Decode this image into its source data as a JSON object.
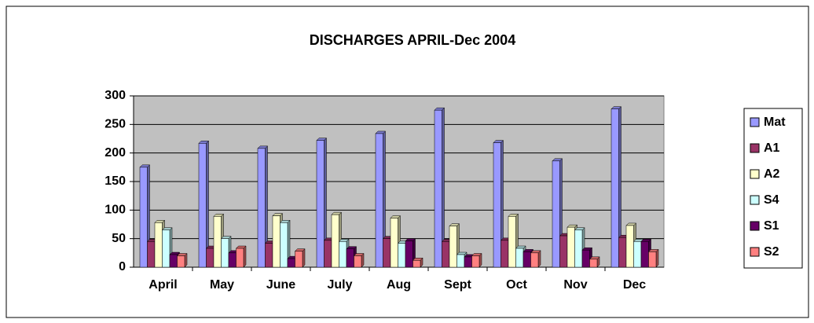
{
  "chart_data": {
    "type": "bar",
    "title": "DISCHARGES APRIL-Dec 2004",
    "categories": [
      "April",
      "May",
      "June",
      "July",
      "Aug",
      "Sept",
      "Oct",
      "Nov",
      "Dec"
    ],
    "series": [
      {
        "name": "Mat",
        "color": "#9999FF",
        "values": [
          175,
          217,
          208,
          222,
          234,
          275,
          218,
          186,
          277
        ]
      },
      {
        "name": "A1",
        "color": "#993366",
        "values": [
          45,
          33,
          42,
          47,
          50,
          45,
          47,
          55,
          52
        ]
      },
      {
        "name": "A2",
        "color": "#FFFFCC",
        "values": [
          78,
          89,
          90,
          92,
          86,
          72,
          89,
          70,
          73
        ]
      },
      {
        "name": "S4",
        "color": "#CCFFFF",
        "values": [
          65,
          50,
          78,
          45,
          42,
          22,
          33,
          65,
          45
        ]
      },
      {
        "name": "S1",
        "color": "#660066",
        "values": [
          22,
          25,
          15,
          32,
          46,
          18,
          27,
          30,
          45
        ]
      },
      {
        "name": "S2",
        "color": "#FF8080",
        "values": [
          20,
          33,
          28,
          20,
          12,
          20,
          25,
          14,
          27
        ]
      }
    ],
    "ylim": [
      0,
      300
    ],
    "yticks": [
      0,
      50,
      100,
      150,
      200,
      250,
      300
    ],
    "grid": true,
    "legend": "right"
  }
}
